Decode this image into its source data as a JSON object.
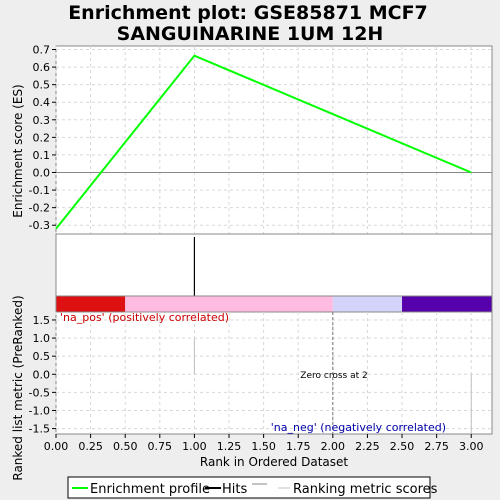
{
  "chart_data": {
    "type": "line",
    "title_lines": [
      "Enrichment plot: GSE85871 MCF7",
      "SANGUINARINE 1UM 12H"
    ],
    "es_panel": {
      "ylabel": "Enrichment score (ES)",
      "ylim": [
        -0.35,
        0.72
      ],
      "yticks": [
        -0.3,
        -0.2,
        -0.1,
        0.0,
        0.1,
        0.2,
        0.3,
        0.4,
        0.5,
        0.6,
        0.7
      ],
      "ytick_labels": [
        "-0.3",
        "-0.2",
        "-0.1",
        "0.0",
        "0.1",
        "0.2",
        "0.3",
        "0.4",
        "0.5",
        "0.6",
        "0.7"
      ],
      "series": [
        {
          "name": "Enrichment profile",
          "color": "#00ff00",
          "x": [
            0,
            1,
            3
          ],
          "y": [
            -0.32,
            0.665,
            0.0
          ]
        }
      ]
    },
    "hits": {
      "x": [
        1
      ],
      "color": "#000000"
    },
    "rank_bar": {
      "segments": [
        {
          "from": 0.0,
          "to": 0.5,
          "color": "#dd1111"
        },
        {
          "from": 0.5,
          "to": 2.0,
          "color": "#ffbbe0"
        },
        {
          "from": 2.0,
          "to": 2.5,
          "color": "#d4d4fa"
        },
        {
          "from": 2.5,
          "to": 3.15,
          "color": "#5500aa"
        }
      ]
    },
    "metric_panel": {
      "ylabel": "Ranked list metric (PreRanked)",
      "ylim": [
        -1.65,
        1.72
      ],
      "yticks": [
        -1.5,
        -1.0,
        -0.5,
        0.0,
        0.5,
        1.0,
        1.5
      ],
      "ytick_labels": [
        "-1.5",
        "-1.0",
        "-0.5",
        "0.0",
        "0.5",
        "1.0",
        "1.5"
      ],
      "scores": [
        {
          "x": 1,
          "y": 1.0
        },
        {
          "x": 3,
          "y": 0.0
        }
      ],
      "na_pos_label": "'na_pos' (positively correlated)",
      "na_neg_label": "'na_neg' (negatively correlated)",
      "zero_cross_label": "Zero cross at 2",
      "zero_cross_x": 2
    },
    "xaxis": {
      "xlabel": "Rank in Ordered Dataset",
      "xlim": [
        0,
        3.15
      ],
      "xticks": [
        0,
        0.25,
        0.5,
        0.75,
        1.0,
        1.25,
        1.5,
        1.75,
        2.0,
        2.25,
        2.5,
        2.75,
        3.0
      ],
      "xtick_labels": [
        "0.00",
        "0.25",
        "0.50",
        "0.75",
        "1.00",
        "1.25",
        "1.50",
        "1.75",
        "2.00",
        "2.25",
        "2.50",
        "2.75",
        "3.00"
      ]
    },
    "legend": {
      "placement": "bottom",
      "items": [
        {
          "label": "Enrichment profile",
          "color": "#00ff00"
        },
        {
          "label": "Hits",
          "color": "#000000"
        },
        {
          "label": "Ranking metric scores",
          "color": "#c0c0c0"
        }
      ]
    }
  }
}
